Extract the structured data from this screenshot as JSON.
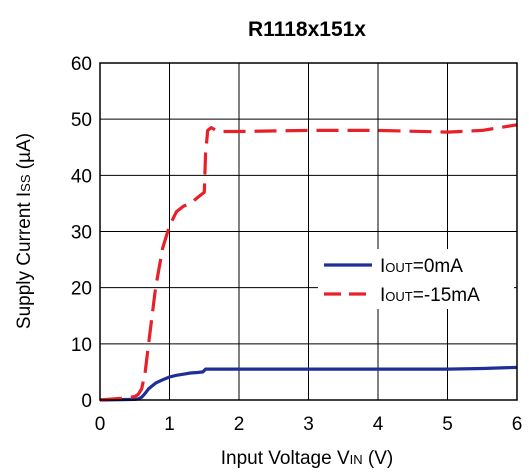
{
  "chart_data": {
    "type": "line",
    "title": "R1118x151x",
    "xlabel": {
      "main": "Input Voltage V",
      "sub": "IN",
      "unit": " (V)"
    },
    "ylabel": {
      "main": "Supply Current I",
      "sub": "SS",
      "unit": " (µA)"
    },
    "xlim": [
      0,
      6
    ],
    "ylim": [
      0,
      60
    ],
    "xticks": [
      "0",
      "1",
      "2",
      "3",
      "4",
      "5",
      "6"
    ],
    "yticks": [
      "0",
      "10",
      "20",
      "30",
      "40",
      "50",
      "60"
    ],
    "grid": true,
    "legend_position": "right",
    "series": [
      {
        "name": "IOUT=0mA",
        "label": {
          "main": "I",
          "sub": "OUT",
          "rest": "=0mA"
        },
        "color": "#1f2f9a",
        "dash": "solid",
        "x": [
          0,
          0.5,
          0.55,
          0.6,
          0.65,
          0.7,
          0.8,
          0.9,
          1.0,
          1.1,
          1.2,
          1.3,
          1.4,
          1.48,
          1.52,
          1.6,
          2,
          3,
          4,
          5,
          5.5,
          6
        ],
        "y": [
          0,
          0.1,
          0.2,
          0.5,
          1.2,
          2.0,
          3.0,
          3.6,
          4.1,
          4.4,
          4.6,
          4.8,
          4.9,
          5.0,
          5.5,
          5.5,
          5.5,
          5.5,
          5.5,
          5.5,
          5.6,
          5.8
        ]
      },
      {
        "name": "IOUT=-15mA",
        "label": {
          "main": "I",
          "sub": "OUT",
          "rest": "=-15mA"
        },
        "color": "#e8202a",
        "dash": "dashed",
        "x": [
          0,
          0.3,
          0.5,
          0.55,
          0.6,
          0.65,
          0.7,
          0.8,
          0.9,
          1.0,
          1.1,
          1.2,
          1.3,
          1.4,
          1.5,
          1.52,
          1.55,
          1.6,
          1.7,
          2,
          3,
          4,
          5,
          5.5,
          6
        ],
        "y": [
          0,
          0.3,
          0.6,
          1.0,
          2.0,
          5.0,
          10.0,
          20.0,
          27.0,
          31.0,
          33.5,
          34.5,
          35.0,
          36.0,
          37.0,
          44.0,
          48.0,
          48.5,
          47.8,
          47.8,
          48.0,
          48.0,
          47.7,
          48.0,
          49.0
        ]
      }
    ]
  }
}
